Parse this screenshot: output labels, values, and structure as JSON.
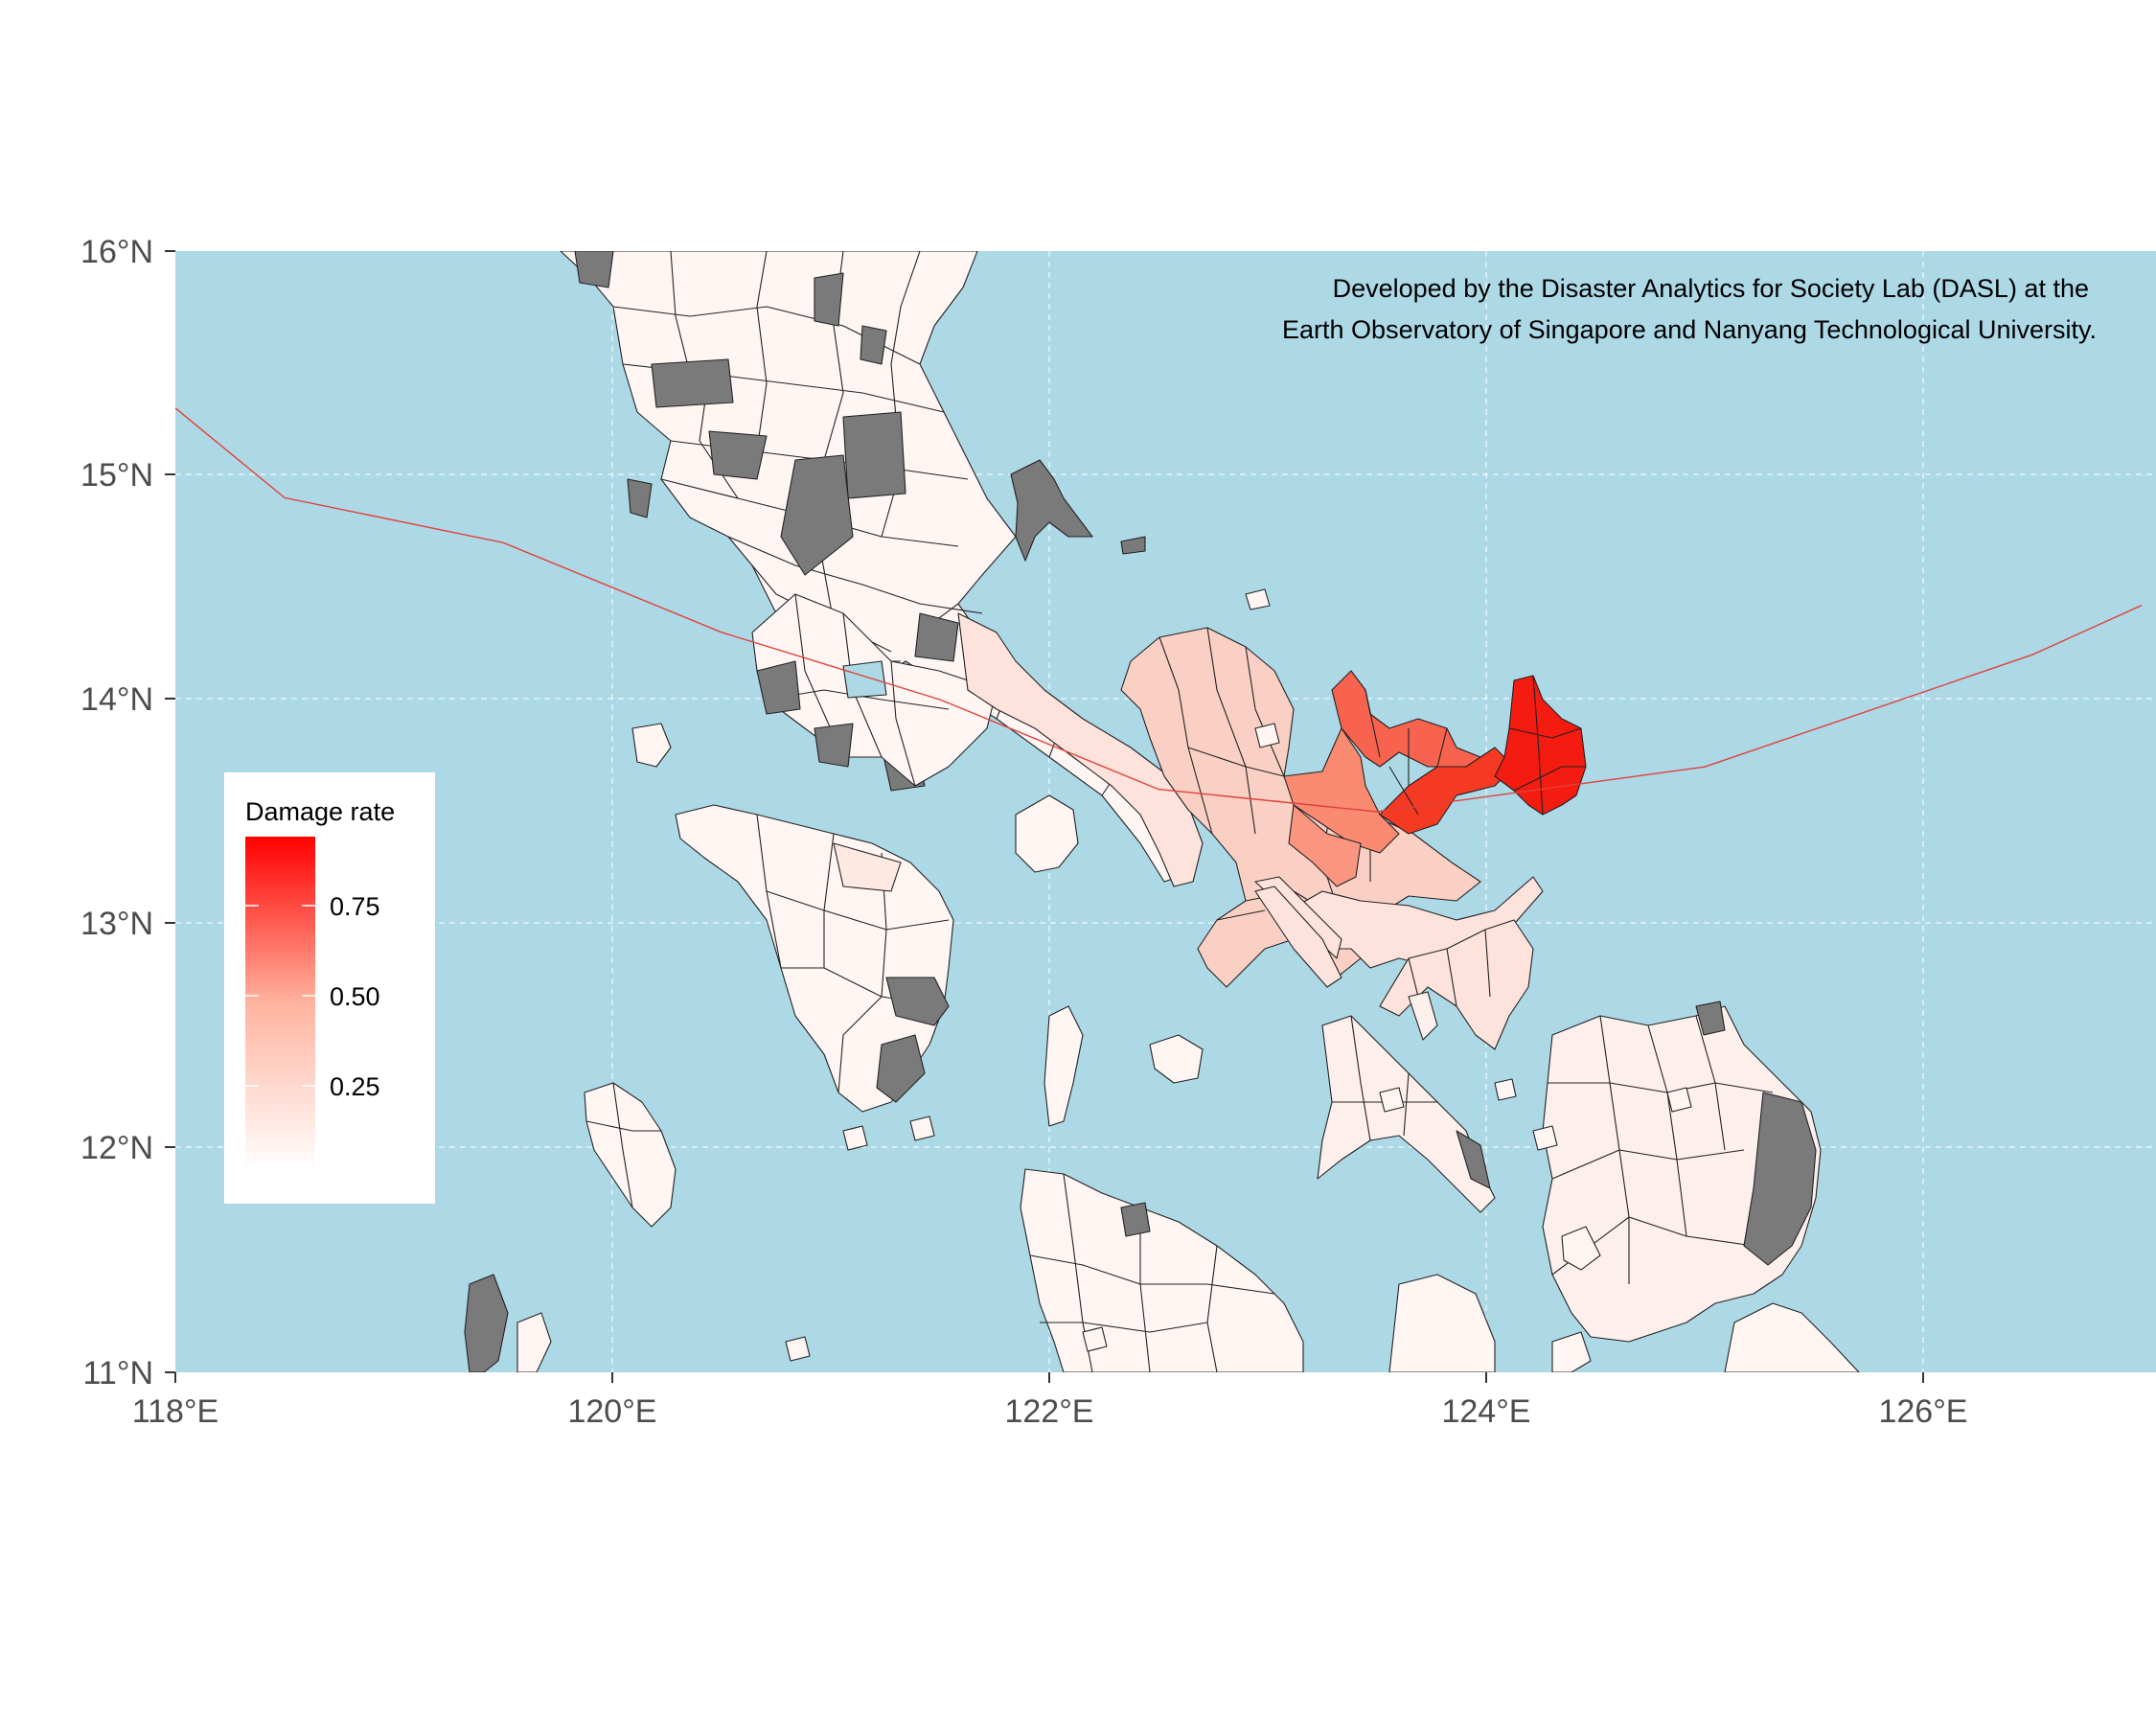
{
  "map": {
    "credit_line1": "Developed by the Disaster Analytics for Society Lab (DASL) at the",
    "credit_line2": "Earth Observatory of Singapore and Nanyang Technological University.",
    "lat_ticks": [
      "16°N",
      "15°N",
      "14°N",
      "13°N",
      "12°N",
      "11°N"
    ],
    "lon_ticks": [
      "118°E",
      "120°E",
      "122°E",
      "124°E",
      "126°E"
    ],
    "extent": {
      "lon_min": 118,
      "lon_max": 127,
      "lat_min": 11,
      "lat_max": 16
    },
    "colors": {
      "ocean": "#add8e6",
      "no_data": "#7a7a7a",
      "low": "#ffffff",
      "high": "#ff0000",
      "track": "#e0413a",
      "grid": "#ffffff"
    },
    "legend": {
      "title": "Damage rate",
      "ticks": [
        "0.75",
        "0.50",
        "0.25"
      ],
      "position": "left-center"
    },
    "track": [
      [
        118.0,
        15.3
      ],
      [
        118.5,
        14.9
      ],
      [
        119.5,
        14.7
      ],
      [
        120.5,
        14.3
      ],
      [
        121.5,
        14.0
      ],
      [
        122.5,
        13.6
      ],
      [
        123.5,
        13.5
      ],
      [
        125.0,
        13.7
      ],
      [
        126.5,
        14.2
      ],
      [
        127.0,
        14.42
      ]
    ]
  }
}
